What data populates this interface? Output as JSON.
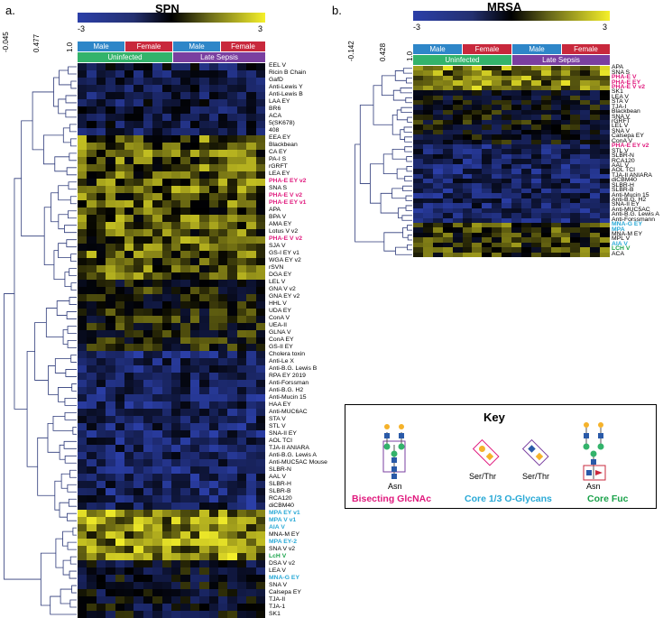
{
  "panels": {
    "a": {
      "letter": "a.",
      "title": "SPN",
      "colorbar": {
        "min_label": "-3",
        "max_label": "3"
      },
      "dendro_ticks": [
        "-0.045",
        "0.477",
        "1.0"
      ],
      "groups_top": [
        "Male",
        "Female",
        "Male",
        "Female"
      ],
      "groups_bottom": [
        "Uninfected",
        "Late Sepsis"
      ],
      "rows": [
        {
          "t": "EEL V",
          "c": "#000"
        },
        {
          "t": "Ricin B Chain",
          "c": "#000"
        },
        {
          "t": "GafD",
          "c": "#000"
        },
        {
          "t": "Anti-Lewis Y",
          "c": "#000"
        },
        {
          "t": "Anti-Lewis B",
          "c": "#000"
        },
        {
          "t": "LAA EY",
          "c": "#000"
        },
        {
          "t": "BR6",
          "c": "#000"
        },
        {
          "t": "ACA",
          "c": "#000"
        },
        {
          "t": "5(SK678)",
          "c": "#000"
        },
        {
          "t": "408",
          "c": "#000"
        },
        {
          "t": "EEA EY",
          "c": "#000"
        },
        {
          "t": "Blackbean",
          "c": "#000"
        },
        {
          "t": "CA EY",
          "c": "#000"
        },
        {
          "t": "PA-I S",
          "c": "#000"
        },
        {
          "t": "rGRFT",
          "c": "#000"
        },
        {
          "t": "LEA EY",
          "c": "#000"
        },
        {
          "t": "PHA-E EY v2",
          "c": "#e0197d"
        },
        {
          "t": "SNA S",
          "c": "#000"
        },
        {
          "t": "PHA-E V v2",
          "c": "#e0197d"
        },
        {
          "t": "PHA-E EY v1",
          "c": "#e0197d"
        },
        {
          "t": "APA",
          "c": "#000"
        },
        {
          "t": "BPA V",
          "c": "#000"
        },
        {
          "t": "AMA EY",
          "c": "#000"
        },
        {
          "t": "Lotus V v2",
          "c": "#000"
        },
        {
          "t": "PHA-E V v2",
          "c": "#e0197d"
        },
        {
          "t": "SJA V",
          "c": "#000"
        },
        {
          "t": "GS-I EY v1",
          "c": "#000"
        },
        {
          "t": "WGA EY v2",
          "c": "#000"
        },
        {
          "t": "rSVN",
          "c": "#000"
        },
        {
          "t": "DGA EY",
          "c": "#000"
        },
        {
          "t": "LEL V",
          "c": "#000"
        },
        {
          "t": "GNA V v2",
          "c": "#000"
        },
        {
          "t": "GNA EY v2",
          "c": "#000"
        },
        {
          "t": "HHL V",
          "c": "#000"
        },
        {
          "t": "UDA EY",
          "c": "#000"
        },
        {
          "t": "ConA V",
          "c": "#000"
        },
        {
          "t": "UEA-II",
          "c": "#000"
        },
        {
          "t": "GLNA V",
          "c": "#000"
        },
        {
          "t": "ConA EY",
          "c": "#000"
        },
        {
          "t": "GS-II EY",
          "c": "#000"
        },
        {
          "t": "Cholera toxin",
          "c": "#000"
        },
        {
          "t": "Anti-Le X",
          "c": "#000"
        },
        {
          "t": "Anti-B.G. Lewis B",
          "c": "#000"
        },
        {
          "t": "RPA EY 2019",
          "c": "#000"
        },
        {
          "t": "Anti-Forssman",
          "c": "#000"
        },
        {
          "t": "Anti-B.G. H2",
          "c": "#000"
        },
        {
          "t": "Anti-Mucin 15",
          "c": "#000"
        },
        {
          "t": "HAA EY",
          "c": "#000"
        },
        {
          "t": "Anti-MUC6AC",
          "c": "#000"
        },
        {
          "t": "STA V",
          "c": "#000"
        },
        {
          "t": "STL V",
          "c": "#000"
        },
        {
          "t": "SNA-II EY",
          "c": "#000"
        },
        {
          "t": "AOL TCI",
          "c": "#000"
        },
        {
          "t": "TJA-II ANIARA",
          "c": "#000"
        },
        {
          "t": "Anti-B.G. Lewis A",
          "c": "#000"
        },
        {
          "t": "Anti-MUC5AC Mouse",
          "c": "#000"
        },
        {
          "t": "SLBR-N",
          "c": "#000"
        },
        {
          "t": "AAL V",
          "c": "#000"
        },
        {
          "t": "SLBR-H",
          "c": "#000"
        },
        {
          "t": "SLBR-B",
          "c": "#000"
        },
        {
          "t": "RCA120",
          "c": "#000"
        },
        {
          "t": "diCBM40",
          "c": "#000"
        },
        {
          "t": "MPA EY v1",
          "c": "#29a9d6"
        },
        {
          "t": "MPA V v1",
          "c": "#29a9d6"
        },
        {
          "t": "AIA V",
          "c": "#29a9d6"
        },
        {
          "t": "MNA-M EY",
          "c": "#000"
        },
        {
          "t": "MPA EY-2",
          "c": "#29a9d6"
        },
        {
          "t": "SNA V v2",
          "c": "#000"
        },
        {
          "t": "LcH V",
          "c": "#1aa24a"
        },
        {
          "t": "DSA V v2",
          "c": "#000"
        },
        {
          "t": "LEA V",
          "c": "#000"
        },
        {
          "t": "MNA-G EY",
          "c": "#29a9d6"
        },
        {
          "t": "SNA V",
          "c": "#000"
        },
        {
          "t": "Calsepa EY",
          "c": "#000"
        },
        {
          "t": "TJA-II",
          "c": "#000"
        },
        {
          "t": "TJA-1",
          "c": "#000"
        },
        {
          "t": "SK1",
          "c": "#000"
        }
      ]
    },
    "b": {
      "letter": "b.",
      "title": "MRSA",
      "colorbar": {
        "min_label": "-3",
        "max_label": "3"
      },
      "dendro_ticks": [
        "-0.142",
        "0.428",
        "1.0"
      ],
      "groups_top": [
        "Male",
        "Female",
        "Male",
        "Female"
      ],
      "groups_bottom": [
        "Uninfected",
        "Late Sepsis"
      ],
      "rows": [
        {
          "t": "APA",
          "c": "#000"
        },
        {
          "t": "SNA S",
          "c": "#000"
        },
        {
          "t": "PHA-E V",
          "c": "#e0197d"
        },
        {
          "t": "PHA-E EY",
          "c": "#e0197d"
        },
        {
          "t": "PHA-E V v2",
          "c": "#e0197d"
        },
        {
          "t": "SK1",
          "c": "#000"
        },
        {
          "t": "LEA V",
          "c": "#000"
        },
        {
          "t": "STA V",
          "c": "#000"
        },
        {
          "t": "TJA-I",
          "c": "#000"
        },
        {
          "t": "Blackbean",
          "c": "#000"
        },
        {
          "t": "SNA V",
          "c": "#000"
        },
        {
          "t": "rGRFT",
          "c": "#000"
        },
        {
          "t": "LEL V",
          "c": "#000"
        },
        {
          "t": "SNA V",
          "c": "#000"
        },
        {
          "t": "Calsepa EY",
          "c": "#000"
        },
        {
          "t": "ConA V",
          "c": "#000"
        },
        {
          "t": "PHA-E EY v2",
          "c": "#e0197d"
        },
        {
          "t": "STL V",
          "c": "#000"
        },
        {
          "t": "SLBR-N",
          "c": "#000"
        },
        {
          "t": "RCA120",
          "c": "#000"
        },
        {
          "t": "AAL V",
          "c": "#000"
        },
        {
          "t": "AOL TCI",
          "c": "#000"
        },
        {
          "t": "TJA-II ANIARA",
          "c": "#000"
        },
        {
          "t": "diCBM40",
          "c": "#000"
        },
        {
          "t": "SLBR-H",
          "c": "#000"
        },
        {
          "t": "SLBR-B",
          "c": "#000"
        },
        {
          "t": "Anti-Mucin 15",
          "c": "#000"
        },
        {
          "t": "Anti-B.G. H2",
          "c": "#000"
        },
        {
          "t": "SNA-II EY",
          "c": "#000"
        },
        {
          "t": "Anti-MUC5AC",
          "c": "#000"
        },
        {
          "t": "Anti-B.G. Lewis A",
          "c": "#000"
        },
        {
          "t": "Anti-Forssmann",
          "c": "#000"
        },
        {
          "t": "MNA-G EY",
          "c": "#29a9d6"
        },
        {
          "t": "MPA",
          "c": "#29a9d6"
        },
        {
          "t": "MNA-M EY",
          "c": "#000"
        },
        {
          "t": "MPL V",
          "c": "#000"
        },
        {
          "t": "AIA V",
          "c": "#29a9d6"
        },
        {
          "t": "LCH V",
          "c": "#1aa24a"
        },
        {
          "t": "ACA",
          "c": "#000"
        }
      ]
    }
  },
  "key": {
    "title": "Key",
    "glycan_labels": [
      "Asn",
      "Ser/Thr",
      "Ser/Thr",
      "Asn"
    ],
    "categories": [
      {
        "label": "Bisecting GlcNAc",
        "color": "#e0197d"
      },
      {
        "label": "Core 1/3 O-Glycans",
        "color": "#29a9d6"
      },
      {
        "label": "Core Fuc",
        "color": "#1aa24a"
      }
    ]
  },
  "colors": {
    "male": "#2e86c8",
    "female": "#c8283c",
    "uninfected": "#33b36b",
    "sepsis": "#7a3fa0",
    "low": "#2b3fa8",
    "mid": "#000000",
    "high": "#f5f02a"
  }
}
